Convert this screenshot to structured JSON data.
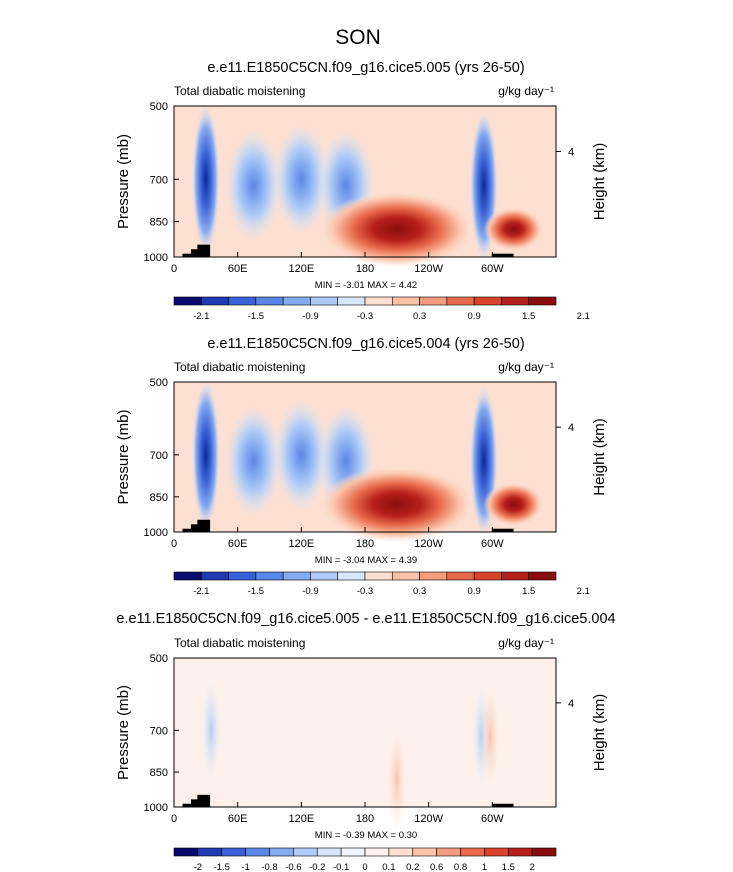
{
  "page_title": "SON",
  "chart_data": [
    {
      "type": "heatmap",
      "title": "e.e11.E1850C5CN.f09_g16.cice5.005 (yrs 26-50)",
      "left_label": "Total diabatic moistening",
      "right_label": "g/kg day⁻¹",
      "ylabel": "Pressure (mb)",
      "ylabel_right": "Height (km)",
      "xticks": [
        "0",
        "60E",
        "120E",
        "180",
        "120W",
        "60W"
      ],
      "xtick_values": [
        0,
        60,
        120,
        180,
        240,
        300
      ],
      "xlim": [
        0,
        360
      ],
      "yticks": [
        "500",
        "700",
        "850",
        "1000"
      ],
      "ytick_values": [
        500,
        700,
        850,
        1000
      ],
      "ylim": [
        1000,
        500
      ],
      "yticks_right": [
        "4"
      ],
      "stats": "MIN = -3.01  MAX =  4.42",
      "colorbar_levels": [
        "-2.1",
        "-1.5",
        "-0.9",
        "-0.3",
        "0.3",
        "0.9",
        "1.5",
        "2.1"
      ],
      "colorbar_colors": [
        "#0a0a6e",
        "#1f3ab3",
        "#3a62d6",
        "#5a86e8",
        "#86aaf0",
        "#aecbf7",
        "#d7e6fb",
        "#fde0d2",
        "#fbc2a8",
        "#f59c7e",
        "#e8694b",
        "#d9432b",
        "#b51f1a",
        "#8a0d0d"
      ],
      "features": [
        {
          "kind": "drying",
          "lon": 30,
          "p": 700,
          "intensity": -2.4
        },
        {
          "kind": "drying",
          "lon": 75,
          "p": 720,
          "intensity": -1.0
        },
        {
          "kind": "drying",
          "lon": 120,
          "p": 700,
          "intensity": -1.2
        },
        {
          "kind": "drying",
          "lon": 162,
          "p": 720,
          "intensity": -0.8
        },
        {
          "kind": "drying",
          "lon": 292,
          "p": 720,
          "intensity": -2.2
        },
        {
          "kind": "moistening",
          "lon": 210,
          "p": 880,
          "intensity": 2.4
        },
        {
          "kind": "moistening",
          "lon": 320,
          "p": 880,
          "intensity": 1.8
        }
      ]
    },
    {
      "type": "heatmap",
      "title": "e.e11.E1850C5CN.f09_g16.cice5.004 (yrs 26-50)",
      "left_label": "Total diabatic moistening",
      "right_label": "g/kg day⁻¹",
      "ylabel": "Pressure (mb)",
      "ylabel_right": "Height (km)",
      "xticks": [
        "0",
        "60E",
        "120E",
        "180",
        "120W",
        "60W"
      ],
      "xtick_values": [
        0,
        60,
        120,
        180,
        240,
        300
      ],
      "xlim": [
        0,
        360
      ],
      "yticks": [
        "500",
        "700",
        "850",
        "1000"
      ],
      "ytick_values": [
        500,
        700,
        850,
        1000
      ],
      "ylim": [
        1000,
        500
      ],
      "yticks_right": [
        "4"
      ],
      "stats": "MIN = -3.04  MAX =  4.39",
      "colorbar_levels": [
        "-2.1",
        "-1.5",
        "-0.9",
        "-0.3",
        "0.3",
        "0.9",
        "1.5",
        "2.1"
      ],
      "colorbar_colors": [
        "#0a0a6e",
        "#1f3ab3",
        "#3a62d6",
        "#5a86e8",
        "#86aaf0",
        "#aecbf7",
        "#d7e6fb",
        "#fde0d2",
        "#fbc2a8",
        "#f59c7e",
        "#e8694b",
        "#d9432b",
        "#b51f1a",
        "#8a0d0d"
      ],
      "features": [
        {
          "kind": "drying",
          "lon": 30,
          "p": 700,
          "intensity": -2.4
        },
        {
          "kind": "drying",
          "lon": 75,
          "p": 720,
          "intensity": -1.0
        },
        {
          "kind": "drying",
          "lon": 120,
          "p": 700,
          "intensity": -1.2
        },
        {
          "kind": "drying",
          "lon": 162,
          "p": 720,
          "intensity": -0.8
        },
        {
          "kind": "drying",
          "lon": 292,
          "p": 720,
          "intensity": -2.2
        },
        {
          "kind": "moistening",
          "lon": 210,
          "p": 880,
          "intensity": 2.4
        },
        {
          "kind": "moistening",
          "lon": 320,
          "p": 880,
          "intensity": 1.8
        }
      ]
    },
    {
      "type": "heatmap",
      "title": "e.e11.E1850C5CN.f09_g16.cice5.005 - e.e11.E1850C5CN.f09_g16.cice5.004",
      "left_label": "Total diabatic moistening",
      "right_label": "g/kg day⁻¹",
      "ylabel": "Pressure (mb)",
      "ylabel_right": "Height (km)",
      "xticks": [
        "0",
        "60E",
        "120E",
        "180",
        "120W",
        "60W"
      ],
      "xtick_values": [
        0,
        60,
        120,
        180,
        240,
        300
      ],
      "xlim": [
        0,
        360
      ],
      "yticks": [
        "500",
        "700",
        "850",
        "1000"
      ],
      "ytick_values": [
        500,
        700,
        850,
        1000
      ],
      "ylim": [
        1000,
        500
      ],
      "yticks_right": [
        "4"
      ],
      "stats": "MIN = -0.39  MAX =  0.30",
      "colorbar_levels": [
        "-2",
        "-1.5",
        "-1",
        "-0.8",
        "-0.6",
        "-0.2",
        "-0.1",
        "0",
        "0.1",
        "0.2",
        "0.6",
        "0.8",
        "1",
        "1.5",
        "2"
      ],
      "colorbar_colors": [
        "#0a0a6e",
        "#1f3ab3",
        "#3a62d6",
        "#5a86e8",
        "#86aaf0",
        "#aecbf7",
        "#d7e6fb",
        "#eef4fd",
        "#fdf0ea",
        "#fde0d2",
        "#fbc2a8",
        "#f59c7e",
        "#e8694b",
        "#d9432b",
        "#b51f1a",
        "#8a0d0d"
      ],
      "features": [
        {
          "kind": "drying",
          "lon": 35,
          "p": 700,
          "intensity": -0.3
        },
        {
          "kind": "drying",
          "lon": 290,
          "p": 720,
          "intensity": -0.35
        },
        {
          "kind": "moistening",
          "lon": 298,
          "p": 720,
          "intensity": 0.3
        },
        {
          "kind": "moistening",
          "lon": 210,
          "p": 880,
          "intensity": 0.1
        }
      ]
    }
  ]
}
